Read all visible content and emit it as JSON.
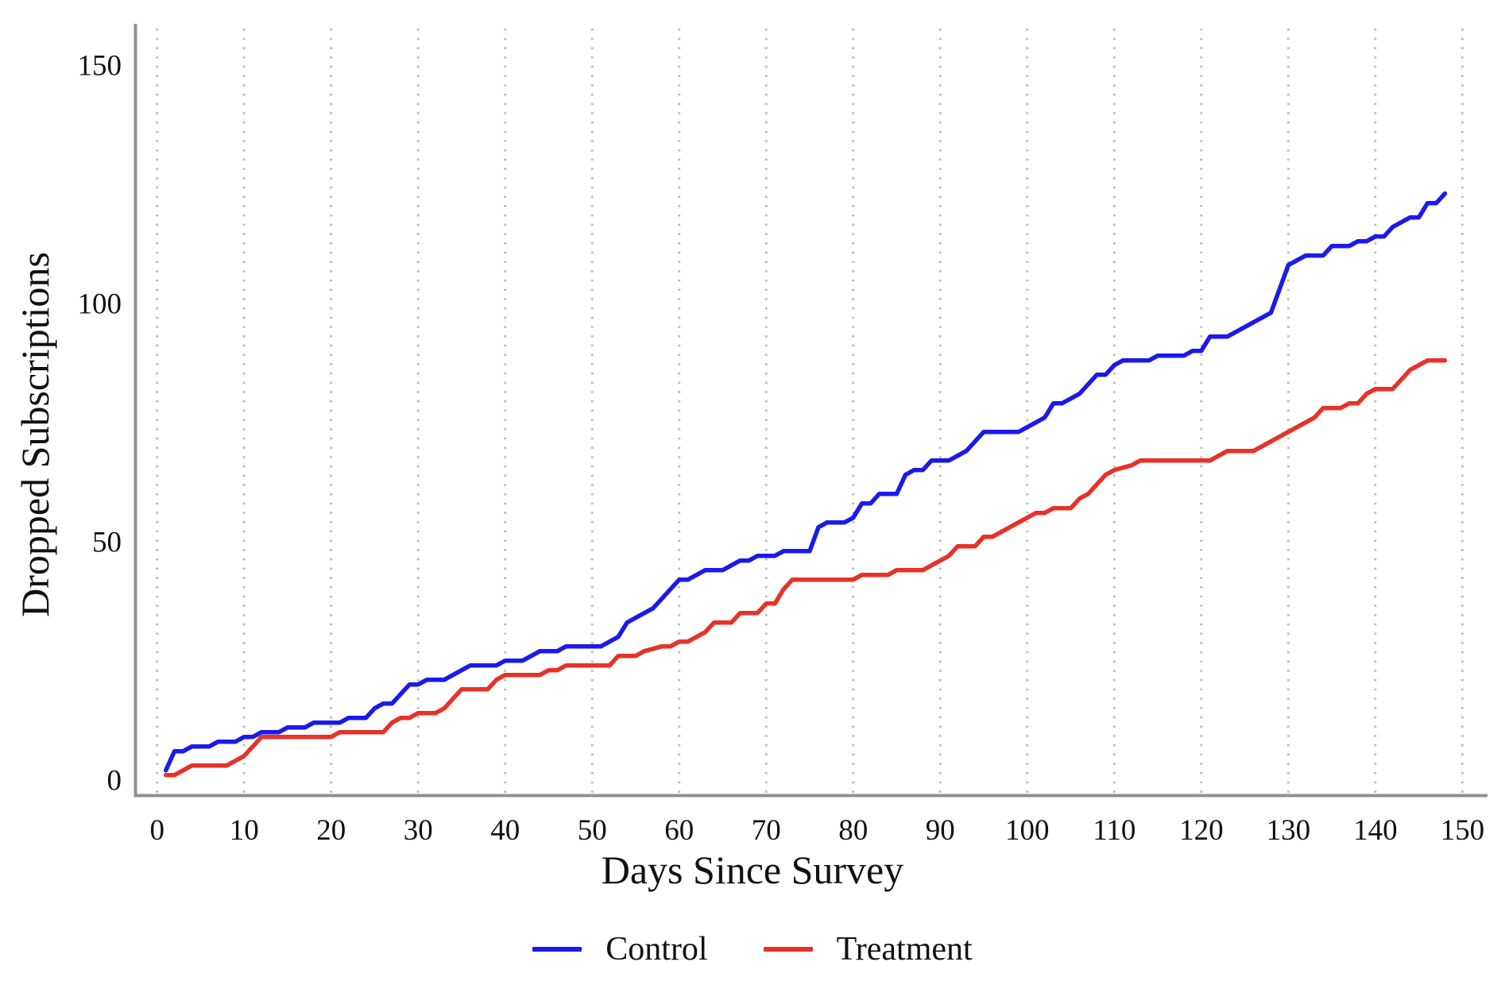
{
  "chart_data": {
    "type": "line",
    "title": "",
    "xlabel": "Days Since Survey",
    "ylabel": "Dropped Subscriptions",
    "xlim": [
      0,
      150
    ],
    "ylim": [
      0,
      150
    ],
    "x_ticks": [
      0,
      10,
      20,
      30,
      40,
      50,
      60,
      70,
      80,
      90,
      100,
      110,
      120,
      130,
      140,
      150
    ],
    "y_ticks": [
      0,
      50,
      100,
      150
    ],
    "grid": "vertical-dotted",
    "legend_position": "bottom-center",
    "colors": {
      "axis": "#919191",
      "gridline": "#b9b9b9",
      "text": "#111111",
      "control": "#1a1aeb",
      "treatment": "#e63228"
    },
    "series": [
      {
        "name": "Control",
        "color": "#1a1aeb",
        "points": [
          [
            1,
            2
          ],
          [
            2,
            6
          ],
          [
            3,
            6
          ],
          [
            4,
            7
          ],
          [
            6,
            7
          ],
          [
            7,
            8
          ],
          [
            9,
            8
          ],
          [
            10,
            9
          ],
          [
            11,
            9
          ],
          [
            12,
            10
          ],
          [
            14,
            10
          ],
          [
            15,
            11
          ],
          [
            17,
            11
          ],
          [
            18,
            12
          ],
          [
            21,
            12
          ],
          [
            22,
            13
          ],
          [
            24,
            13
          ],
          [
            25,
            15
          ],
          [
            26,
            16
          ],
          [
            27,
            16
          ],
          [
            28,
            18
          ],
          [
            29,
            20
          ],
          [
            30,
            20
          ],
          [
            31,
            21
          ],
          [
            33,
            21
          ],
          [
            34,
            22
          ],
          [
            35,
            23
          ],
          [
            36,
            24
          ],
          [
            39,
            24
          ],
          [
            40,
            25
          ],
          [
            42,
            25
          ],
          [
            43,
            26
          ],
          [
            44,
            27
          ],
          [
            46,
            27
          ],
          [
            47,
            28
          ],
          [
            51,
            28
          ],
          [
            52,
            29
          ],
          [
            53,
            30
          ],
          [
            54,
            33
          ],
          [
            55,
            34
          ],
          [
            56,
            35
          ],
          [
            57,
            36
          ],
          [
            58,
            38
          ],
          [
            59,
            40
          ],
          [
            60,
            42
          ],
          [
            61,
            42
          ],
          [
            62,
            43
          ],
          [
            63,
            44
          ],
          [
            65,
            44
          ],
          [
            66,
            45
          ],
          [
            67,
            46
          ],
          [
            68,
            46
          ],
          [
            69,
            47
          ],
          [
            71,
            47
          ],
          [
            72,
            48
          ],
          [
            75,
            48
          ],
          [
            76,
            53
          ],
          [
            77,
            54
          ],
          [
            79,
            54
          ],
          [
            80,
            55
          ],
          [
            81,
            58
          ],
          [
            82,
            58
          ],
          [
            83,
            60
          ],
          [
            85,
            60
          ],
          [
            86,
            64
          ],
          [
            87,
            65
          ],
          [
            88,
            65
          ],
          [
            89,
            67
          ],
          [
            91,
            67
          ],
          [
            92,
            68
          ],
          [
            93,
            69
          ],
          [
            94,
            71
          ],
          [
            95,
            73
          ],
          [
            99,
            73
          ],
          [
            100,
            74
          ],
          [
            101,
            75
          ],
          [
            102,
            76
          ],
          [
            103,
            79
          ],
          [
            104,
            79
          ],
          [
            105,
            80
          ],
          [
            106,
            81
          ],
          [
            107,
            83
          ],
          [
            108,
            85
          ],
          [
            109,
            85
          ],
          [
            110,
            87
          ],
          [
            111,
            88
          ],
          [
            114,
            88
          ],
          [
            115,
            89
          ],
          [
            118,
            89
          ],
          [
            119,
            90
          ],
          [
            120,
            90
          ],
          [
            121,
            93
          ],
          [
            123,
            93
          ],
          [
            124,
            94
          ],
          [
            125,
            95
          ],
          [
            126,
            96
          ],
          [
            127,
            97
          ],
          [
            128,
            98
          ],
          [
            129,
            103
          ],
          [
            130,
            108
          ],
          [
            131,
            109
          ],
          [
            132,
            110
          ],
          [
            134,
            110
          ],
          [
            135,
            112
          ],
          [
            137,
            112
          ],
          [
            138,
            113
          ],
          [
            139,
            113
          ],
          [
            140,
            114
          ],
          [
            141,
            114
          ],
          [
            142,
            116
          ],
          [
            143,
            117
          ],
          [
            144,
            118
          ],
          [
            145,
            118
          ],
          [
            146,
            121
          ],
          [
            147,
            121
          ],
          [
            148,
            123
          ]
        ]
      },
      {
        "name": "Treatment",
        "color": "#e63228",
        "points": [
          [
            1,
            1
          ],
          [
            2,
            1
          ],
          [
            3,
            2
          ],
          [
            4,
            3
          ],
          [
            8,
            3
          ],
          [
            9,
            4
          ],
          [
            10,
            5
          ],
          [
            11,
            7
          ],
          [
            12,
            9
          ],
          [
            20,
            9
          ],
          [
            21,
            10
          ],
          [
            26,
            10
          ],
          [
            27,
            12
          ],
          [
            28,
            13
          ],
          [
            29,
            13
          ],
          [
            30,
            14
          ],
          [
            32,
            14
          ],
          [
            33,
            15
          ],
          [
            34,
            17
          ],
          [
            35,
            19
          ],
          [
            38,
            19
          ],
          [
            39,
            21
          ],
          [
            40,
            22
          ],
          [
            44,
            22
          ],
          [
            45,
            23
          ],
          [
            46,
            23
          ],
          [
            47,
            24
          ],
          [
            52,
            24
          ],
          [
            53,
            26
          ],
          [
            55,
            26
          ],
          [
            56,
            27
          ],
          [
            58,
            28
          ],
          [
            59,
            28
          ],
          [
            60,
            29
          ],
          [
            61,
            29
          ],
          [
            62,
            30
          ],
          [
            63,
            31
          ],
          [
            64,
            33
          ],
          [
            66,
            33
          ],
          [
            67,
            35
          ],
          [
            69,
            35
          ],
          [
            70,
            37
          ],
          [
            71,
            37
          ],
          [
            72,
            40
          ],
          [
            73,
            42
          ],
          [
            80,
            42
          ],
          [
            81,
            43
          ],
          [
            84,
            43
          ],
          [
            85,
            44
          ],
          [
            88,
            44
          ],
          [
            89,
            45
          ],
          [
            90,
            46
          ],
          [
            91,
            47
          ],
          [
            92,
            49
          ],
          [
            94,
            49
          ],
          [
            95,
            51
          ],
          [
            96,
            51
          ],
          [
            97,
            52
          ],
          [
            98,
            53
          ],
          [
            99,
            54
          ],
          [
            100,
            55
          ],
          [
            101,
            56
          ],
          [
            102,
            56
          ],
          [
            103,
            57
          ],
          [
            105,
            57
          ],
          [
            106,
            59
          ],
          [
            107,
            60
          ],
          [
            108,
            62
          ],
          [
            109,
            64
          ],
          [
            110,
            65
          ],
          [
            112,
            66
          ],
          [
            113,
            67
          ],
          [
            121,
            67
          ],
          [
            122,
            68
          ],
          [
            123,
            69
          ],
          [
            126,
            69
          ],
          [
            127,
            70
          ],
          [
            128,
            71
          ],
          [
            129,
            72
          ],
          [
            130,
            73
          ],
          [
            131,
            74
          ],
          [
            132,
            75
          ],
          [
            133,
            76
          ],
          [
            134,
            78
          ],
          [
            136,
            78
          ],
          [
            137,
            79
          ],
          [
            138,
            79
          ],
          [
            139,
            81
          ],
          [
            140,
            82
          ],
          [
            142,
            82
          ],
          [
            143,
            84
          ],
          [
            144,
            86
          ],
          [
            145,
            87
          ],
          [
            146,
            88
          ],
          [
            148,
            88
          ]
        ]
      }
    ]
  }
}
